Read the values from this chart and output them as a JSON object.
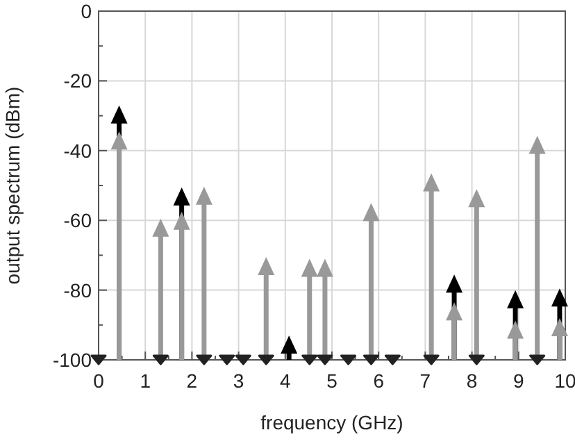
{
  "chart_data": {
    "type": "lollipop",
    "xlabel": "frequency (GHz)",
    "ylabel": "output spectrum (dBm)",
    "xlim": [
      0,
      10
    ],
    "ylim": [
      -100,
      0
    ],
    "xticks": [
      0,
      1,
      2,
      3,
      4,
      5,
      6,
      7,
      8,
      9,
      10
    ],
    "yticks": [
      -100,
      -80,
      -60,
      -40,
      -20,
      0
    ],
    "grid": true,
    "marker": "triangle",
    "series": [
      {
        "color": "#000000",
        "x": [
          0.44,
          1.78,
          4.08,
          7.62,
          8.93,
          9.88
        ],
        "values": [
          -30.5,
          -54,
          -96.5,
          -79,
          -83.5,
          -83
        ]
      },
      {
        "color": "#999999",
        "x": [
          0.44,
          1.33,
          1.78,
          2.26,
          3.59,
          4.52,
          4.85,
          5.84,
          7.13,
          7.62,
          8.1,
          8.93,
          9.4,
          9.88
        ],
        "values": [
          -38,
          -63,
          -61,
          -53.8,
          -74,
          -74.5,
          -74.5,
          -58.5,
          -50,
          -87,
          -54.5,
          -92.2,
          -39.2,
          -91.5
        ]
      },
      {
        "type": "scatter",
        "marker": "triangle-down",
        "color": "#222222",
        "x": [
          0,
          1.33,
          2.26,
          2.75,
          3.1,
          3.59,
          4.52,
          4.85,
          5.35,
          5.84,
          6.3,
          7.13,
          8.1,
          9.4
        ],
        "values": [
          -100,
          -100,
          -100,
          -100,
          -100,
          -100,
          -100,
          -100,
          -100,
          -100,
          -100,
          -100,
          -100,
          -100
        ]
      }
    ]
  }
}
